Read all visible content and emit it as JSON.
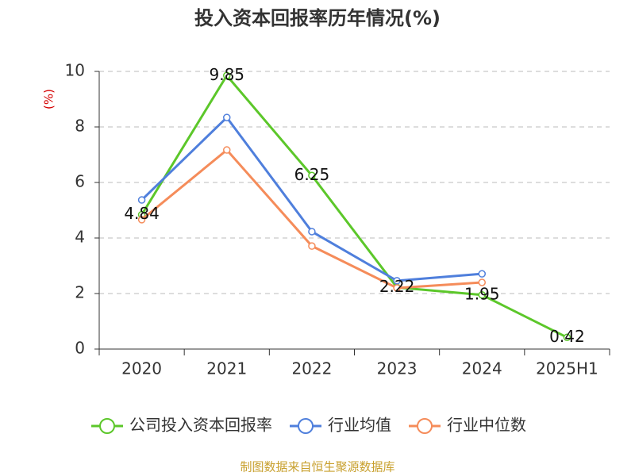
{
  "chart_data": {
    "type": "line",
    "title": "投入资本回报率历年情况(%)",
    "y_label": "(%)",
    "categories": [
      "2020",
      "2021",
      "2022",
      "2023",
      "2024",
      "2025H1"
    ],
    "series": [
      {
        "name": "公司投入资本回报率",
        "color": "#5cc72a",
        "values": [
          4.84,
          9.85,
          6.25,
          2.22,
          1.95,
          0.42
        ],
        "show_labels": true
      },
      {
        "name": "行业均值",
        "color": "#4f7fdc",
        "values": [
          5.37,
          8.34,
          4.23,
          2.46,
          2.71,
          null
        ]
      },
      {
        "name": "行业中位数",
        "color": "#f58c5a",
        "values": [
          4.66,
          7.17,
          3.71,
          2.2,
          2.4,
          null
        ]
      }
    ],
    "ylim": [
      0,
      10
    ],
    "yticks": [
      0,
      2,
      4,
      6,
      8,
      10
    ],
    "grid": true,
    "source": "制图数据来自恒生聚源数据库"
  }
}
